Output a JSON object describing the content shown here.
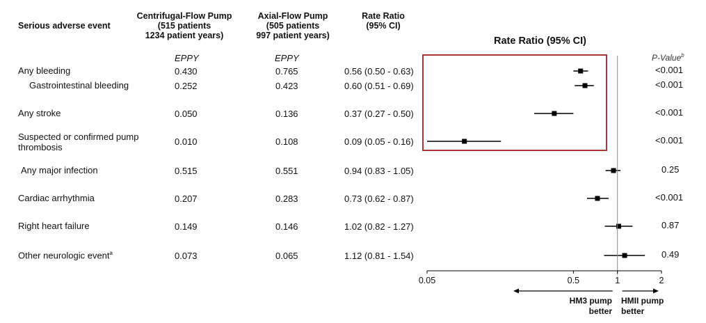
{
  "table": {
    "event_header": "Serious adverse event",
    "centrifugal_header": [
      "Centrifugal-Flow Pump",
      "(515 patients",
      "1234 patient years)"
    ],
    "axial_header": [
      "Axial-Flow Pump",
      "(505 patients",
      "997 patient years)"
    ],
    "ratio_header": [
      "Rate Ratio",
      "(95% CI)"
    ],
    "eppy_centrifugal": "EPPY",
    "eppy_axial": "EPPY"
  },
  "plot": {
    "title": "Rate Ratio (95% CI)",
    "pvalue_header": "P-Value",
    "pvalue_sup": "b",
    "left_arrow_label": [
      "HM3 pump",
      "better"
    ],
    "right_arrow_label": [
      "HMII pump",
      "better"
    ],
    "highlight_color": "#a31f1f"
  },
  "chart_data": {
    "type": "forest",
    "title": "Rate Ratio (95% CI)",
    "x_scale": "log",
    "xlim": [
      0.05,
      2
    ],
    "xticks": [
      0.05,
      0.5,
      1,
      2
    ],
    "xtick_labels": [
      "0.05",
      "0.5",
      "1",
      "2"
    ],
    "reference_line": 1,
    "rows": [
      {
        "label": "Any bleeding",
        "sup": "",
        "indent": false,
        "centrifugal": "0.430",
        "axial": "0.765",
        "ratio_text": "0.56 (0.50 - 0.63)",
        "rr": 0.56,
        "lo": 0.5,
        "hi": 0.63,
        "p": "<0.001"
      },
      {
        "label": "Gastrointestinal bleeding",
        "sup": "",
        "indent": true,
        "centrifugal": "0.252",
        "axial": "0.423",
        "ratio_text": "0.60 (0.51 - 0.69)",
        "rr": 0.6,
        "lo": 0.51,
        "hi": 0.69,
        "p": "<0.001"
      },
      {
        "label": "Any stroke",
        "sup": "",
        "indent": false,
        "centrifugal": "0.050",
        "axial": "0.136",
        "ratio_text": "0.37 (0.27 - 0.50)",
        "rr": 0.37,
        "lo": 0.27,
        "hi": 0.5,
        "p": "<0.001"
      },
      {
        "label": "Suspected or confirmed pump",
        "label2": "thrombosis",
        "sup": "",
        "indent": false,
        "centrifugal": "0.010",
        "axial": "0.108",
        "ratio_text": "0.09 (0.05 - 0.16)",
        "rr": 0.09,
        "lo": 0.05,
        "hi": 0.16,
        "p": "<0.001"
      },
      {
        "label": "Any major infection",
        "sup": "",
        "indent": false,
        "centrifugal": "0.515",
        "axial": "0.551",
        "ratio_text": "0.94 (0.83 - 1.05)",
        "rr": 0.94,
        "lo": 0.83,
        "hi": 1.05,
        "p": "0.25"
      },
      {
        "label": "Cardiac arrhythmia",
        "sup": "",
        "indent": false,
        "centrifugal": "0.207",
        "axial": "0.283",
        "ratio_text": "0.73 (0.62 - 0.87)",
        "rr": 0.73,
        "lo": 0.62,
        "hi": 0.87,
        "p": "<0.001"
      },
      {
        "label": "Right heart failure",
        "sup": "",
        "indent": false,
        "centrifugal": "0.149",
        "axial": "0.146",
        "ratio_text": "1.02 (0.82 - 1.27)",
        "rr": 1.02,
        "lo": 0.82,
        "hi": 1.27,
        "p": "0.87"
      },
      {
        "label": "Other neurologic event",
        "sup": "a",
        "indent": false,
        "centrifugal": "0.073",
        "axial": "0.065",
        "ratio_text": "1.12 (0.81 - 1.54)",
        "rr": 1.12,
        "lo": 0.81,
        "hi": 1.54,
        "p": "0.49"
      }
    ]
  }
}
